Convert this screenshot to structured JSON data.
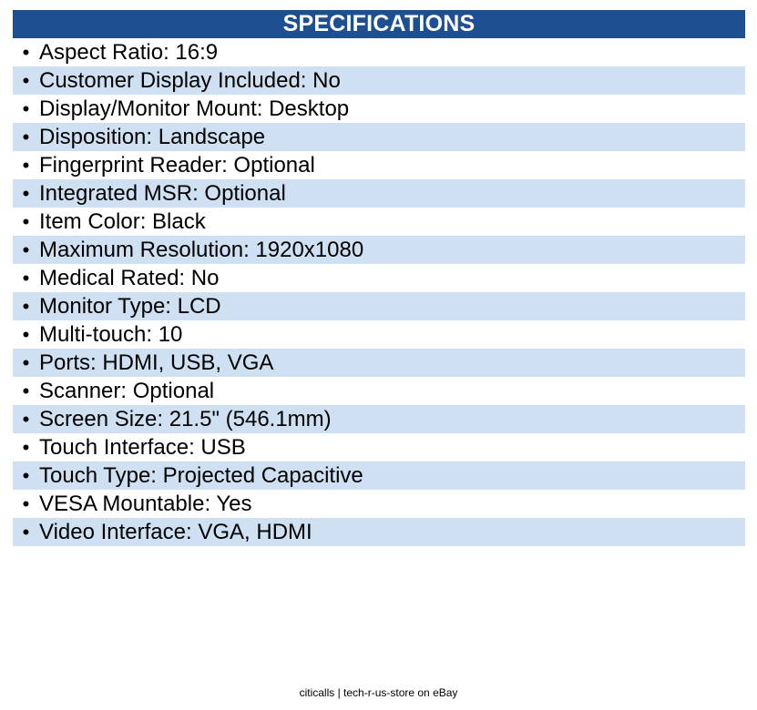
{
  "header": {
    "title": "SPECIFICATIONS"
  },
  "specs": [
    "Aspect Ratio: 16:9",
    "Customer Display Included: No",
    "Display/Monitor Mount: Desktop",
    "Disposition: Landscape",
    "Fingerprint Reader: Optional",
    "Integrated MSR: Optional",
    "Item Color: Black",
    "Maximum Resolution: 1920x1080",
    "Medical Rated: No",
    "Monitor Type: LCD",
    "Multi-touch: 10",
    "Ports: HDMI, USB, VGA",
    "Scanner: Optional",
    "Screen Size: 21.5\" (546.1mm)",
    "Touch Interface: USB",
    "Touch Type: Projected Capacitive",
    "VESA Mountable: Yes",
    "Video Interface: VGA, HDMI"
  ],
  "bullet_glyph": "•",
  "footer": {
    "text": "citicalls | tech-r-us-store on eBay"
  },
  "colors": {
    "header_bg": "#1d4f91",
    "stripe": "#cfe0f2"
  }
}
